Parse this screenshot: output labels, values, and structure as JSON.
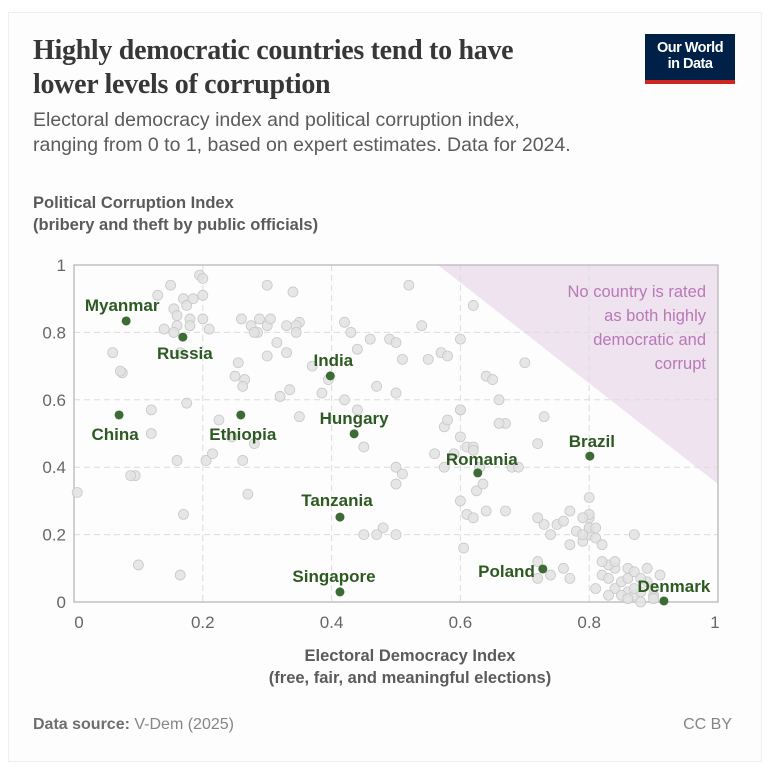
{
  "header": {
    "title_line1": "Highly democratic countries tend to have",
    "title_line2": "lower levels of corruption",
    "subtitle_line1": "Electoral democracy index and political corruption index,",
    "subtitle_line2": "ranging from 0 to 1, based on expert estimates. Data for 2024.",
    "logo_line1": "Our World",
    "logo_line2": "in Data",
    "logo_colors": {
      "background": "#002147",
      "accent": "#ce261e"
    }
  },
  "footer": {
    "source_label": "Data source:",
    "source_value": "V-Dem (2025)",
    "license": "CC BY"
  },
  "chart_data": {
    "type": "scatter",
    "title": "Highly democratic countries tend to have lower levels of corruption",
    "xlabel_line1": "Electoral Democracy Index",
    "xlabel_line2": "(free, fair, and meaningful elections)",
    "ylabel_line1": "Political Corruption Index",
    "ylabel_line2": "(bribery and theft by public officials)",
    "xlim": [
      0,
      1
    ],
    "ylim": [
      0,
      1
    ],
    "x_ticks": [
      0,
      0.2,
      0.4,
      0.6,
      0.8,
      1
    ],
    "x_tick_labels": [
      "0",
      "0.2",
      "0.4",
      "0.6",
      "0.8",
      "1"
    ],
    "y_ticks": [
      0,
      0.2,
      0.4,
      0.6,
      0.8,
      1
    ],
    "y_tick_labels": [
      "0",
      "0.2",
      "0.4",
      "0.6",
      "0.8",
      "1"
    ],
    "grid": true,
    "colors": {
      "highlight": "#3d6b35",
      "label": "#2d5a22",
      "other": "#e2e2e2",
      "other_stroke": "#c8c8c8",
      "region_fill": "#eee3ef",
      "annotation": "#b978b6"
    },
    "annotation": {
      "lines": [
        "No country is rated",
        "as both highly",
        "democratic and",
        "corrupt"
      ],
      "region_vertices": [
        [
          0.565,
          1
        ],
        [
          1,
          1
        ],
        [
          1,
          0.35
        ]
      ]
    },
    "highlighted": [
      {
        "name": "Myanmar",
        "x": 0.081,
        "y": 0.834
      },
      {
        "name": "Russia",
        "x": 0.169,
        "y": 0.786
      },
      {
        "name": "China",
        "x": 0.07,
        "y": 0.555
      },
      {
        "name": "Ethiopia",
        "x": 0.259,
        "y": 0.555
      },
      {
        "name": "India",
        "x": 0.398,
        "y": 0.671
      },
      {
        "name": "Hungary",
        "x": 0.435,
        "y": 0.499
      },
      {
        "name": "Tanzania",
        "x": 0.413,
        "y": 0.252
      },
      {
        "name": "Singapore",
        "x": 0.413,
        "y": 0.03
      },
      {
        "name": "Romania",
        "x": 0.627,
        "y": 0.383
      },
      {
        "name": "Brazil",
        "x": 0.801,
        "y": 0.433
      },
      {
        "name": "Poland",
        "x": 0.728,
        "y": 0.098
      },
      {
        "name": "Denmark",
        "x": 0.916,
        "y": 0.003
      }
    ],
    "other_points": [
      [
        0.005,
        0.325
      ],
      [
        0.06,
        0.74
      ],
      [
        0.075,
        0.68
      ],
      [
        0.072,
        0.685
      ],
      [
        0.095,
        0.375
      ],
      [
        0.088,
        0.375
      ],
      [
        0.1,
        0.11
      ],
      [
        0.12,
        0.57
      ],
      [
        0.12,
        0.5
      ],
      [
        0.13,
        0.91
      ],
      [
        0.15,
        0.94
      ],
      [
        0.14,
        0.81
      ],
      [
        0.155,
        0.87
      ],
      [
        0.16,
        0.85
      ],
      [
        0.16,
        0.82
      ],
      [
        0.155,
        0.8
      ],
      [
        0.17,
        0.9
      ],
      [
        0.175,
        0.88
      ],
      [
        0.18,
        0.84
      ],
      [
        0.185,
        0.9
      ],
      [
        0.195,
        0.97
      ],
      [
        0.2,
        0.96
      ],
      [
        0.2,
        0.91
      ],
      [
        0.18,
        0.82
      ],
      [
        0.165,
        0.74
      ],
      [
        0.17,
        0.26
      ],
      [
        0.165,
        0.08
      ],
      [
        0.16,
        0.42
      ],
      [
        0.175,
        0.59
      ],
      [
        0.2,
        0.84
      ],
      [
        0.205,
        0.42
      ],
      [
        0.21,
        0.81
      ],
      [
        0.215,
        0.44
      ],
      [
        0.225,
        0.54
      ],
      [
        0.25,
        0.67
      ],
      [
        0.265,
        0.66
      ],
      [
        0.262,
        0.64
      ],
      [
        0.255,
        0.71
      ],
      [
        0.26,
        0.84
      ],
      [
        0.275,
        0.82
      ],
      [
        0.285,
        0.8
      ],
      [
        0.3,
        0.82
      ],
      [
        0.305,
        0.84
      ],
      [
        0.33,
        0.82
      ],
      [
        0.35,
        0.83
      ],
      [
        0.345,
        0.82
      ],
      [
        0.3,
        0.94
      ],
      [
        0.28,
        0.8
      ],
      [
        0.288,
        0.84
      ],
      [
        0.3,
        0.73
      ],
      [
        0.28,
        0.47
      ],
      [
        0.27,
        0.32
      ],
      [
        0.262,
        0.42
      ],
      [
        0.245,
        0.49
      ],
      [
        0.315,
        0.77
      ],
      [
        0.33,
        0.74
      ],
      [
        0.34,
        0.92
      ],
      [
        0.345,
        0.8
      ],
      [
        0.32,
        0.61
      ],
      [
        0.335,
        0.63
      ],
      [
        0.35,
        0.55
      ],
      [
        0.37,
        0.7
      ],
      [
        0.385,
        0.62
      ],
      [
        0.395,
        0.66
      ],
      [
        0.42,
        0.83
      ],
      [
        0.42,
        0.6
      ],
      [
        0.43,
        0.8
      ],
      [
        0.44,
        0.75
      ],
      [
        0.45,
        0.46
      ],
      [
        0.46,
        0.78
      ],
      [
        0.49,
        0.78
      ],
      [
        0.5,
        0.77
      ],
      [
        0.5,
        0.62
      ],
      [
        0.51,
        0.72
      ],
      [
        0.52,
        0.94
      ],
      [
        0.47,
        0.64
      ],
      [
        0.44,
        0.57
      ],
      [
        0.48,
        0.22
      ],
      [
        0.5,
        0.4
      ],
      [
        0.51,
        0.38
      ],
      [
        0.5,
        0.35
      ],
      [
        0.45,
        0.2
      ],
      [
        0.47,
        0.2
      ],
      [
        0.5,
        0.2
      ],
      [
        0.54,
        0.82
      ],
      [
        0.55,
        0.72
      ],
      [
        0.57,
        0.74
      ],
      [
        0.575,
        0.52
      ],
      [
        0.58,
        0.73
      ],
      [
        0.58,
        0.54
      ],
      [
        0.6,
        0.57
      ],
      [
        0.6,
        0.78
      ],
      [
        0.62,
        0.88
      ],
      [
        0.605,
        0.16
      ],
      [
        0.56,
        0.44
      ],
      [
        0.575,
        0.4
      ],
      [
        0.6,
        0.57
      ],
      [
        0.6,
        0.49
      ],
      [
        0.61,
        0.46
      ],
      [
        0.62,
        0.46
      ],
      [
        0.62,
        0.45
      ],
      [
        0.63,
        0.4
      ],
      [
        0.64,
        0.67
      ],
      [
        0.65,
        0.66
      ],
      [
        0.6,
        0.3
      ],
      [
        0.61,
        0.26
      ],
      [
        0.62,
        0.25
      ],
      [
        0.625,
        0.33
      ],
      [
        0.635,
        0.35
      ],
      [
        0.64,
        0.27
      ],
      [
        0.66,
        0.6
      ],
      [
        0.67,
        0.53
      ],
      [
        0.68,
        0.4
      ],
      [
        0.69,
        0.4
      ],
      [
        0.67,
        0.27
      ],
      [
        0.66,
        0.53
      ],
      [
        0.59,
        0.44
      ],
      [
        0.7,
        0.71
      ],
      [
        0.72,
        0.47
      ],
      [
        0.73,
        0.55
      ],
      [
        0.73,
        0.23
      ],
      [
        0.72,
        0.25
      ],
      [
        0.74,
        0.2
      ],
      [
        0.72,
        0.12
      ],
      [
        0.72,
        0.07
      ],
      [
        0.74,
        0.08
      ],
      [
        0.76,
        0.1
      ],
      [
        0.77,
        0.07
      ],
      [
        0.77,
        0.27
      ],
      [
        0.75,
        0.23
      ],
      [
        0.76,
        0.24
      ],
      [
        0.78,
        0.21
      ],
      [
        0.79,
        0.18
      ],
      [
        0.77,
        0.17
      ],
      [
        0.8,
        0.22
      ],
      [
        0.8,
        0.31
      ],
      [
        0.8,
        0.25
      ],
      [
        0.8,
        0.26
      ],
      [
        0.8,
        0.2
      ],
      [
        0.8,
        0.22
      ],
      [
        0.81,
        0.19
      ],
      [
        0.79,
        0.2
      ],
      [
        0.81,
        0.22
      ],
      [
        0.82,
        0.17
      ],
      [
        0.79,
        0.25
      ],
      [
        0.84,
        0.1
      ],
      [
        0.83,
        0.11
      ],
      [
        0.82,
        0.08
      ],
      [
        0.83,
        0.07
      ],
      [
        0.84,
        0.04
      ],
      [
        0.85,
        0.06
      ],
      [
        0.86,
        0.07
      ],
      [
        0.86,
        0.03
      ],
      [
        0.85,
        0.02
      ],
      [
        0.87,
        0.02
      ],
      [
        0.88,
        0.03
      ],
      [
        0.9,
        0.02
      ],
      [
        0.86,
        0.1
      ],
      [
        0.87,
        0.04
      ],
      [
        0.87,
        0.09
      ],
      [
        0.89,
        0.1
      ],
      [
        0.9,
        0.04
      ],
      [
        0.91,
        0.08
      ],
      [
        0.89,
        0.06
      ],
      [
        0.88,
        0.07
      ],
      [
        0.87,
        0.2
      ],
      [
        0.81,
        0.04
      ],
      [
        0.83,
        0.02
      ],
      [
        0.82,
        0.12
      ],
      [
        0.84,
        0.12
      ],
      [
        0.86,
        0.01
      ],
      [
        0.88,
        0.0
      ],
      [
        0.9,
        0.01
      ]
    ]
  }
}
